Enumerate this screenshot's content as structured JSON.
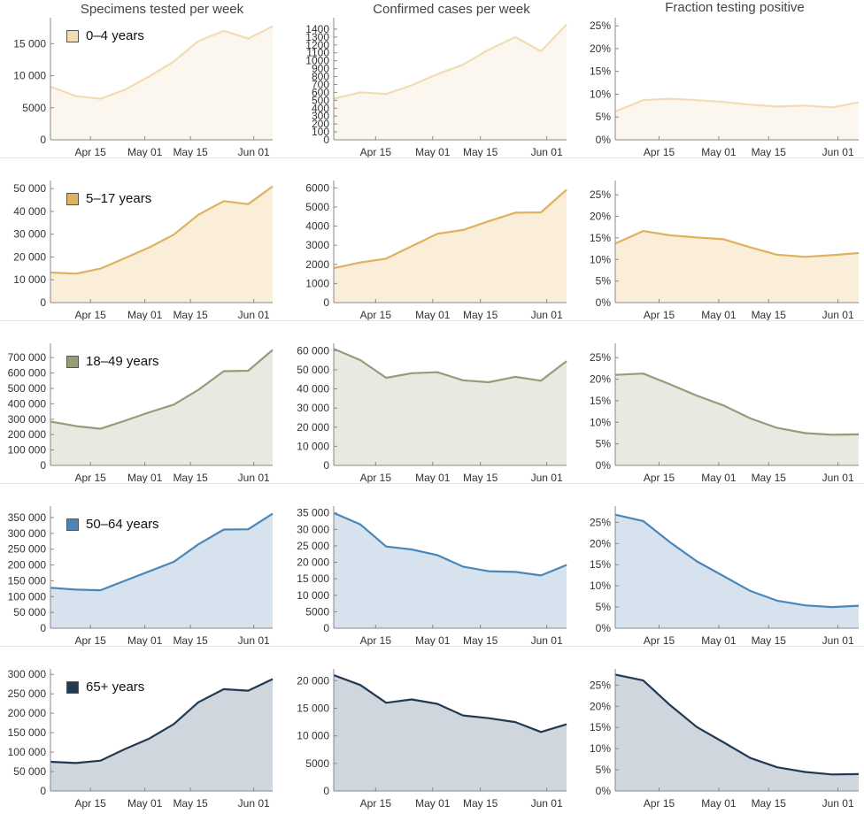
{
  "column_titles": [
    "Specimens tested per week",
    "Confirmed cases per week",
    "Fraction testing positive"
  ],
  "x_tick_labels": [
    "Apr 15",
    "May 01",
    "May 15",
    "Jun 01"
  ],
  "colors": {
    "0-4": {
      "line": "#f2dcb3",
      "fill": "#fbf7ee"
    },
    "5-17": {
      "line": "#deb25e",
      "fill": "#faeed9"
    },
    "18-49": {
      "line": "#969c78",
      "fill": "#e8e9e1"
    },
    "50-64": {
      "line": "#4a87b8",
      "fill": "#d6e3ef"
    },
    "65+": {
      "line": "#213a52",
      "fill": "#d0d6dd"
    }
  },
  "chart_data": [
    {
      "type": "area",
      "group": "0-4",
      "legend": "0–4 years",
      "column": 0,
      "x": [
        "Apr 05",
        "Apr 12",
        "Apr 19",
        "Apr 26",
        "May 03",
        "May 10",
        "May 17",
        "May 24",
        "May 31",
        "Jun 07"
      ],
      "values": [
        8300,
        6800,
        6400,
        7800,
        9900,
        12200,
        15400,
        17000,
        15800,
        17700
      ],
      "ylim": [
        0,
        18500
      ],
      "yticks": [
        0,
        5000,
        10000,
        15000
      ],
      "yticklabels": [
        "0",
        "5000",
        "10 000",
        "15 000"
      ]
    },
    {
      "type": "area",
      "group": "0-4",
      "column": 1,
      "x": [
        "Apr 05",
        "Apr 12",
        "Apr 19",
        "Apr 26",
        "May 03",
        "May 10",
        "May 17",
        "May 24",
        "May 31",
        "Jun 07"
      ],
      "values": [
        520,
        600,
        580,
        690,
        830,
        950,
        1140,
        1300,
        1120,
        1460
      ],
      "ylim": [
        0,
        1500
      ],
      "yticks": [
        0,
        100,
        200,
        300,
        400,
        500,
        600,
        700,
        800,
        900,
        1000,
        1100,
        1200,
        1300,
        1400
      ],
      "yticklabels": [
        "0",
        "100",
        "200",
        "300",
        "400",
        "500",
        "600",
        "700",
        "800",
        "900",
        "1000",
        "1100",
        "1200",
        "1300",
        "1400"
      ]
    },
    {
      "type": "area",
      "group": "0-4",
      "column": 2,
      "x": [
        "Apr 05",
        "Apr 12",
        "Apr 19",
        "Apr 26",
        "May 03",
        "May 10",
        "May 17",
        "May 24",
        "May 31",
        "Jun 07"
      ],
      "values": [
        6.2,
        8.7,
        9.0,
        8.7,
        8.3,
        7.7,
        7.3,
        7.5,
        7.1,
        8.2
      ],
      "ylim": [
        0,
        26
      ],
      "yticks": [
        0,
        5,
        10,
        15,
        20,
        25
      ],
      "yticklabels": [
        "0%",
        "5%",
        "10%",
        "15%",
        "20%",
        "25%"
      ]
    },
    {
      "type": "area",
      "group": "5-17",
      "legend": "5–17 years",
      "column": 0,
      "x": [
        "Apr 05",
        "Apr 12",
        "Apr 19",
        "Apr 26",
        "May 03",
        "May 10",
        "May 17",
        "May 24",
        "May 31",
        "Jun 07"
      ],
      "values": [
        13200,
        12700,
        14900,
        19500,
        24200,
        29800,
        38500,
        44500,
        43200,
        51000
      ],
      "ylim": [
        0,
        52000
      ],
      "yticks": [
        0,
        10000,
        20000,
        30000,
        40000,
        50000
      ],
      "yticklabels": [
        "0",
        "10 000",
        "20 000",
        "30 000",
        "40 000",
        "50 000"
      ]
    },
    {
      "type": "area",
      "group": "5-17",
      "column": 1,
      "x": [
        "Apr 05",
        "Apr 12",
        "Apr 19",
        "Apr 26",
        "May 03",
        "May 10",
        "May 17",
        "May 24",
        "May 31",
        "Jun 07"
      ],
      "values": [
        1800,
        2100,
        2300,
        2950,
        3600,
        3800,
        4250,
        4700,
        4720,
        5900
      ],
      "ylim": [
        0,
        6200
      ],
      "yticks": [
        0,
        1000,
        2000,
        3000,
        4000,
        5000,
        6000
      ],
      "yticklabels": [
        "0",
        "1000",
        "2000",
        "3000",
        "4000",
        "5000",
        "6000"
      ]
    },
    {
      "type": "area",
      "group": "5-17",
      "column": 2,
      "x": [
        "Apr 05",
        "Apr 12",
        "Apr 19",
        "Apr 26",
        "May 03",
        "May 10",
        "May 17",
        "May 24",
        "May 31",
        "Jun 07"
      ],
      "values": [
        13.7,
        16.6,
        15.6,
        15.1,
        14.7,
        12.8,
        11.1,
        10.6,
        11.0,
        11.5
      ],
      "ylim": [
        0,
        27.5
      ],
      "yticks": [
        0,
        5,
        10,
        15,
        20,
        25
      ],
      "yticklabels": [
        "0%",
        "5%",
        "10%",
        "15%",
        "20%",
        "25%"
      ]
    },
    {
      "type": "area",
      "group": "18-49",
      "legend": "18–49 years",
      "column": 0,
      "x": [
        "Apr 05",
        "Apr 12",
        "Apr 19",
        "Apr 26",
        "May 03",
        "May 10",
        "May 17",
        "May 24",
        "May 31",
        "Jun 07"
      ],
      "values": [
        285000,
        255000,
        238000,
        290000,
        345000,
        395000,
        490000,
        612000,
        615000,
        750000
      ],
      "ylim": [
        0,
        770000
      ],
      "yticks": [
        0,
        100000,
        200000,
        300000,
        400000,
        500000,
        600000,
        700000
      ],
      "yticklabels": [
        "0",
        "100 000",
        "200 000",
        "300 000",
        "400 000",
        "500 000",
        "600 000",
        "700 000"
      ]
    },
    {
      "type": "area",
      "group": "18-49",
      "column": 1,
      "x": [
        "Apr 05",
        "Apr 12",
        "Apr 19",
        "Apr 26",
        "May 03",
        "May 10",
        "May 17",
        "May 24",
        "May 31",
        "Jun 07"
      ],
      "values": [
        61000,
        55000,
        45800,
        48200,
        48700,
        44500,
        43500,
        46300,
        44300,
        54500
      ],
      "ylim": [
        0,
        62000
      ],
      "yticks": [
        0,
        10000,
        20000,
        30000,
        40000,
        50000,
        60000
      ],
      "yticklabels": [
        "0",
        "10 000",
        "20 000",
        "30 000",
        "40 000",
        "50 000",
        "60 000"
      ]
    },
    {
      "type": "area",
      "group": "18-49",
      "column": 2,
      "x": [
        "Apr 05",
        "Apr 12",
        "Apr 19",
        "Apr 26",
        "May 03",
        "May 10",
        "May 17",
        "May 24",
        "May 31",
        "Jun 07"
      ],
      "values": [
        21.0,
        21.3,
        18.8,
        16.2,
        13.9,
        10.9,
        8.7,
        7.5,
        7.1,
        7.2
      ],
      "ylim": [
        0,
        27.5
      ],
      "yticks": [
        0,
        5,
        10,
        15,
        20,
        25
      ],
      "yticklabels": [
        "0%",
        "5%",
        "10%",
        "15%",
        "20%",
        "25%"
      ]
    },
    {
      "type": "area",
      "group": "50-64",
      "legend": "50–64 years",
      "column": 0,
      "x": [
        "Apr 05",
        "Apr 12",
        "Apr 19",
        "Apr 26",
        "May 03",
        "May 10",
        "May 17",
        "May 24",
        "May 31",
        "Jun 07"
      ],
      "values": [
        128000,
        122000,
        120000,
        150000,
        180000,
        210000,
        265000,
        312000,
        313000,
        362000
      ],
      "ylim": [
        0,
        375000
      ],
      "yticks": [
        0,
        50000,
        100000,
        150000,
        200000,
        250000,
        300000,
        350000
      ],
      "yticklabels": [
        "0",
        "50 000",
        "100 000",
        "150 000",
        "200 000",
        "250 000",
        "300 000",
        "350 000"
      ]
    },
    {
      "type": "area",
      "group": "50-64",
      "column": 1,
      "x": [
        "Apr 05",
        "Apr 12",
        "Apr 19",
        "Apr 26",
        "May 03",
        "May 10",
        "May 17",
        "May 24",
        "May 31",
        "Jun 07"
      ],
      "values": [
        35000,
        31500,
        24800,
        23900,
        22200,
        18700,
        17300,
        17100,
        16000,
        19200
      ],
      "ylim": [
        0,
        36000
      ],
      "yticks": [
        0,
        5000,
        10000,
        15000,
        20000,
        25000,
        30000,
        35000
      ],
      "yticklabels": [
        "0",
        "5000",
        "10 000",
        "15 000",
        "20 000",
        "25 000",
        "30 000",
        "35 000"
      ]
    },
    {
      "type": "area",
      "group": "50-64",
      "column": 2,
      "x": [
        "Apr 05",
        "Apr 12",
        "Apr 19",
        "Apr 26",
        "May 03",
        "May 10",
        "May 17",
        "May 24",
        "May 31",
        "Jun 07"
      ],
      "values": [
        26.8,
        25.3,
        20.3,
        15.8,
        12.3,
        8.8,
        6.5,
        5.4,
        5.0,
        5.3
      ],
      "ylim": [
        0,
        28
      ],
      "yticks": [
        0,
        5,
        10,
        15,
        20,
        25
      ],
      "yticklabels": [
        "0%",
        "5%",
        "10%",
        "15%",
        "20%",
        "25%"
      ]
    },
    {
      "type": "area",
      "group": "65+",
      "legend": "65+ years",
      "column": 0,
      "x": [
        "Apr 05",
        "Apr 12",
        "Apr 19",
        "Apr 26",
        "May 03",
        "May 10",
        "May 17",
        "May 24",
        "May 31",
        "Jun 07"
      ],
      "values": [
        75000,
        72000,
        78000,
        108000,
        135000,
        172000,
        228000,
        262000,
        258000,
        288000
      ],
      "ylim": [
        0,
        305000
      ],
      "yticks": [
        0,
        50000,
        100000,
        150000,
        200000,
        250000,
        300000
      ],
      "yticklabels": [
        "0",
        "50 000",
        "100 000",
        "150 000",
        "200 000",
        "250 000",
        "300 000"
      ]
    },
    {
      "type": "area",
      "group": "65+",
      "column": 1,
      "x": [
        "Apr 05",
        "Apr 12",
        "Apr 19",
        "Apr 26",
        "May 03",
        "May 10",
        "May 17",
        "May 24",
        "May 31",
        "Jun 07"
      ],
      "values": [
        21000,
        19200,
        16000,
        16600,
        15800,
        13700,
        13200,
        12500,
        10700,
        12100
      ],
      "ylim": [
        0,
        21500
      ],
      "yticks": [
        0,
        5000,
        10000,
        15000,
        20000
      ],
      "yticklabels": [
        "0",
        "5000",
        "10 000",
        "15 000",
        "20 000"
      ]
    },
    {
      "type": "area",
      "group": "65+",
      "column": 2,
      "x": [
        "Apr 05",
        "Apr 12",
        "Apr 19",
        "Apr 26",
        "May 03",
        "May 10",
        "May 17",
        "May 24",
        "May 31",
        "Jun 07"
      ],
      "values": [
        27.5,
        26.1,
        20.3,
        15.1,
        11.5,
        7.8,
        5.6,
        4.5,
        3.9,
        4.0
      ],
      "ylim": [
        0,
        28
      ],
      "yticks": [
        0,
        5,
        10,
        15,
        20,
        25
      ],
      "yticklabels": [
        "0%",
        "5%",
        "10%",
        "15%",
        "20%",
        "25%"
      ]
    }
  ]
}
